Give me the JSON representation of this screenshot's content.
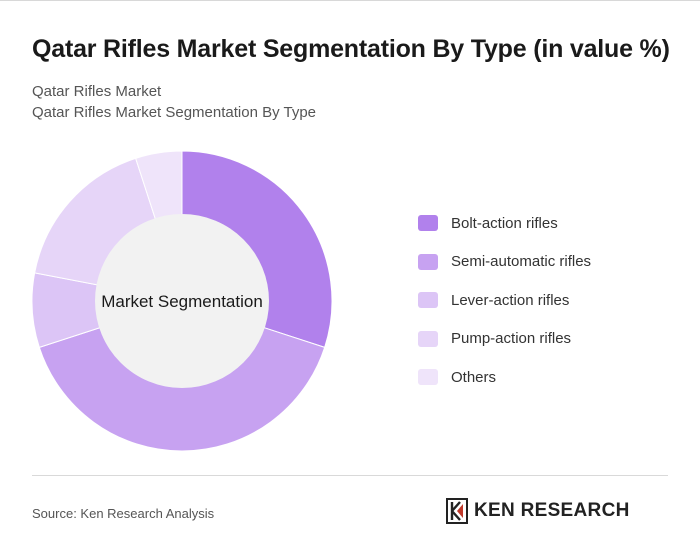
{
  "header": {
    "title": "Qatar Rifles Market Segmentation By Type (in value %)",
    "subtitle_1": "Qatar Rifles Market",
    "subtitle_2": "Qatar Rifles Market Segmentation By Type"
  },
  "chart_data": {
    "type": "pie",
    "variant": "donut",
    "center_label": "Market Segmentation",
    "legend_position": "right",
    "categories": [
      "Bolt-action rifles",
      "Semi-automatic rifles",
      "Lever-action rifles",
      "Pump-action rifles",
      "Others"
    ],
    "values": [
      30,
      40,
      8,
      17,
      5
    ],
    "colors": [
      "#b181ec",
      "#c7a2f1",
      "#dcc5f6",
      "#e6d5f8",
      "#efe4fa"
    ]
  },
  "footer": {
    "source": "Source: Ken Research Analysis",
    "logo_text": "KEN RESEARCH"
  }
}
